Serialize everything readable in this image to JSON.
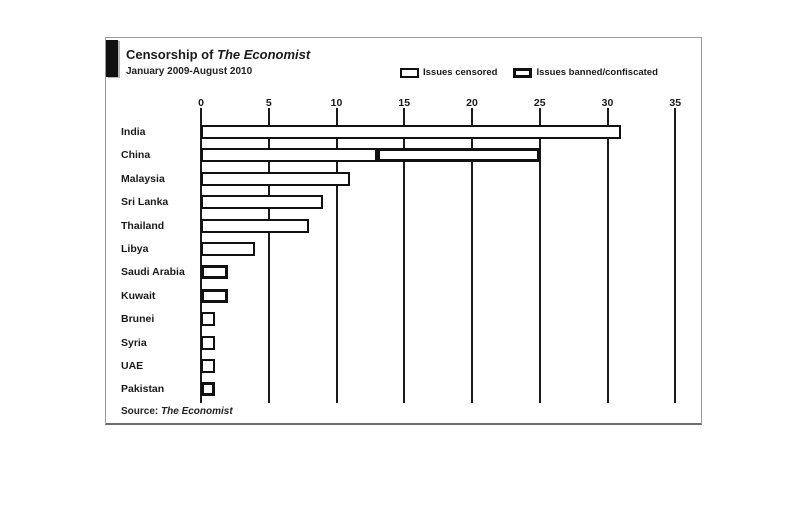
{
  "panel": {
    "title_prefix": "Censorship of ",
    "title_italic": "The Economist",
    "subtitle": "January 2009-August 2010",
    "source_prefix": "Source: ",
    "source_name": "The Economist"
  },
  "legend": [
    {
      "label": "Issues censored",
      "style": "censored"
    },
    {
      "label": "Issues banned/confiscated",
      "style": "banned"
    }
  ],
  "colors": {
    "ink": "#111111",
    "panel_border": "#9a9a9a",
    "background": "#ffffff",
    "bar_fill": "#ffffff"
  },
  "chart_data": {
    "type": "bar",
    "orientation": "horizontal",
    "title": "Censorship of The Economist",
    "subtitle": "January 2009-August 2010",
    "xlabel": "",
    "ylabel": "",
    "xlim": [
      0,
      35
    ],
    "xticks": [
      0,
      5,
      10,
      15,
      20,
      25,
      30,
      35
    ],
    "grid": true,
    "legend_position": "top-right",
    "categories": [
      "India",
      "China",
      "Malaysia",
      "Sri Lanka",
      "Thailand",
      "Libya",
      "Saudi Arabia",
      "Kuwait",
      "Brunei",
      "Syria",
      "UAE",
      "Pakistan"
    ],
    "series": [
      {
        "name": "Issues censored",
        "values": [
          31,
          13,
          11,
          9,
          8,
          4,
          0,
          0,
          1,
          1,
          1,
          0
        ]
      },
      {
        "name": "Issues banned/confiscated",
        "values": [
          0,
          12,
          0,
          0,
          0,
          0,
          2,
          2,
          0,
          0,
          0,
          1
        ]
      }
    ],
    "source": "Source: The Economist"
  }
}
